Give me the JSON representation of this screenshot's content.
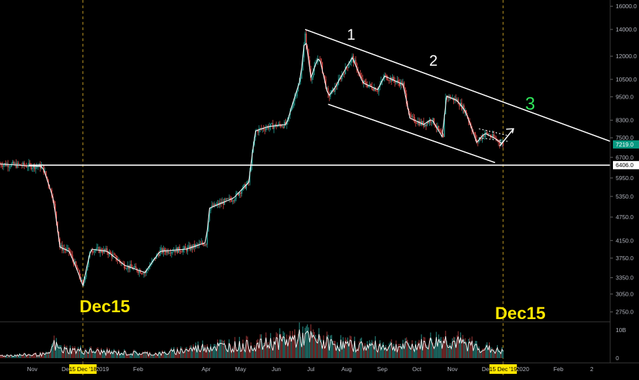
{
  "chart_data": {
    "type": "candlestick",
    "title": "",
    "xlabel": "",
    "ylabel": "",
    "y_scale": "log",
    "ylim": [
      2650,
      16200
    ],
    "y_ticks": [
      16000,
      14000,
      12000,
      10500,
      9500,
      8300,
      7500,
      6700,
      5950,
      5350,
      4750,
      4150,
      3750,
      3350,
      3050,
      2750
    ],
    "y_tick_labels": [
      "16000.0",
      "14000.0",
      "12000.0",
      "10500.0",
      "9500.0",
      "8300.0",
      "7500.0",
      "6700.0",
      "5950.0",
      "5350.0",
      "4750.0",
      "4150.0",
      "3750.0",
      "3350.0",
      "3050.0",
      "2750.0"
    ],
    "x_tick_labels": [
      "Nov",
      "Dec",
      "2019",
      "Feb",
      "Apr",
      "May",
      "Jun",
      "Jul",
      "Aug",
      "Sep",
      "Oct",
      "Nov",
      "Dec",
      "2020",
      "Feb",
      "2"
    ],
    "x_tick_dates": [
      "2018-11-01",
      "2018-12-01",
      "2019-01-01",
      "2019-02-01",
      "2019-04-01",
      "2019-05-01",
      "2019-06-01",
      "2019-07-01",
      "2019-08-01",
      "2019-09-01",
      "2019-10-01",
      "2019-11-01",
      "2019-12-01",
      "2020-01-01",
      "2020-02-01",
      "2020-03-01"
    ],
    "x_range": [
      "2018-10-04",
      "2020-03-17"
    ],
    "price_path": [
      [
        "2018-10-04",
        6450
      ],
      [
        "2018-11-10",
        6350
      ],
      [
        "2018-11-19",
        5300
      ],
      [
        "2018-11-25",
        4000
      ],
      [
        "2018-12-03",
        3900
      ],
      [
        "2018-12-10",
        3500
      ],
      [
        "2018-12-15",
        3200
      ],
      [
        "2018-12-22",
        3950
      ],
      [
        "2019-01-05",
        3900
      ],
      [
        "2019-01-20",
        3600
      ],
      [
        "2019-02-07",
        3450
      ],
      [
        "2019-02-20",
        3900
      ],
      [
        "2019-03-15",
        3950
      ],
      [
        "2019-04-01",
        4100
      ],
      [
        "2019-04-04",
        5000
      ],
      [
        "2019-04-25",
        5300
      ],
      [
        "2019-05-08",
        5800
      ],
      [
        "2019-05-14",
        7800
      ],
      [
        "2019-05-25",
        8000
      ],
      [
        "2019-06-10",
        8100
      ],
      [
        "2019-06-22",
        10500
      ],
      [
        "2019-06-26",
        13500
      ],
      [
        "2019-07-01",
        10600
      ],
      [
        "2019-07-08",
        12000
      ],
      [
        "2019-07-16",
        9500
      ],
      [
        "2019-07-22",
        10000
      ],
      [
        "2019-08-06",
        11900
      ],
      [
        "2019-08-15",
        10300
      ],
      [
        "2019-08-28",
        9900
      ],
      [
        "2019-09-03",
        10700
      ],
      [
        "2019-09-19",
        10200
      ],
      [
        "2019-09-25",
        8400
      ],
      [
        "2019-10-07",
        8100
      ],
      [
        "2019-10-14",
        8350
      ],
      [
        "2019-10-24",
        7450
      ],
      [
        "2019-10-26",
        9550
      ],
      [
        "2019-11-05",
        9300
      ],
      [
        "2019-11-12",
        8750
      ],
      [
        "2019-11-22",
        7300
      ],
      [
        "2019-11-29",
        7700
      ],
      [
        "2019-12-07",
        7500
      ],
      [
        "2019-12-15",
        7219
      ]
    ],
    "volume_path": [
      [
        "2018-10-04",
        12
      ],
      [
        "2018-11-15",
        18
      ],
      [
        "2018-11-20",
        65
      ],
      [
        "2018-11-26",
        40
      ],
      [
        "2018-12-15",
        35
      ],
      [
        "2019-01-15",
        25
      ],
      [
        "2019-02-20",
        20
      ],
      [
        "2019-04-02",
        55
      ],
      [
        "2019-05-14",
        60
      ],
      [
        "2019-06-26",
        100
      ],
      [
        "2019-07-16",
        70
      ],
      [
        "2019-08-06",
        60
      ],
      [
        "2019-09-25",
        55
      ],
      [
        "2019-10-26",
        85
      ],
      [
        "2019-11-22",
        55
      ],
      [
        "2019-12-15",
        30
      ]
    ],
    "last_price": "7219.0",
    "last_price_color": "#089981",
    "support_price": "6406.0",
    "volume_tick_label": "10B",
    "volume_zero_label": "0",
    "colors": {
      "up": "#26a69a",
      "down": "#ef5350",
      "line": "#ffffff",
      "annot_yellow": "#ffe600",
      "annot_green": "#2fe55a"
    },
    "crosshair_dates": [
      "2018-12-15",
      "2019-12-15"
    ],
    "crosshair_tag": "15 Dec '18",
    "crosshair_tag_2": "15 Dec '19",
    "annotations": {
      "left_label": "Dec15",
      "right_label": "Dec15",
      "wave_1": "1",
      "wave_2": "2",
      "wave_3": "3"
    },
    "trendlines": {
      "upper": [
        [
          "2019-06-26",
          14000
        ],
        [
          "2020-03-17",
          7350
        ]
      ],
      "lower": [
        [
          "2019-07-16",
          9100
        ],
        [
          "2019-12-08",
          6500
        ]
      ],
      "support": [
        [
          "2018-10-29",
          6406
        ],
        [
          "2020-03-17",
          6406
        ]
      ]
    },
    "grid": false,
    "legend": "none"
  }
}
